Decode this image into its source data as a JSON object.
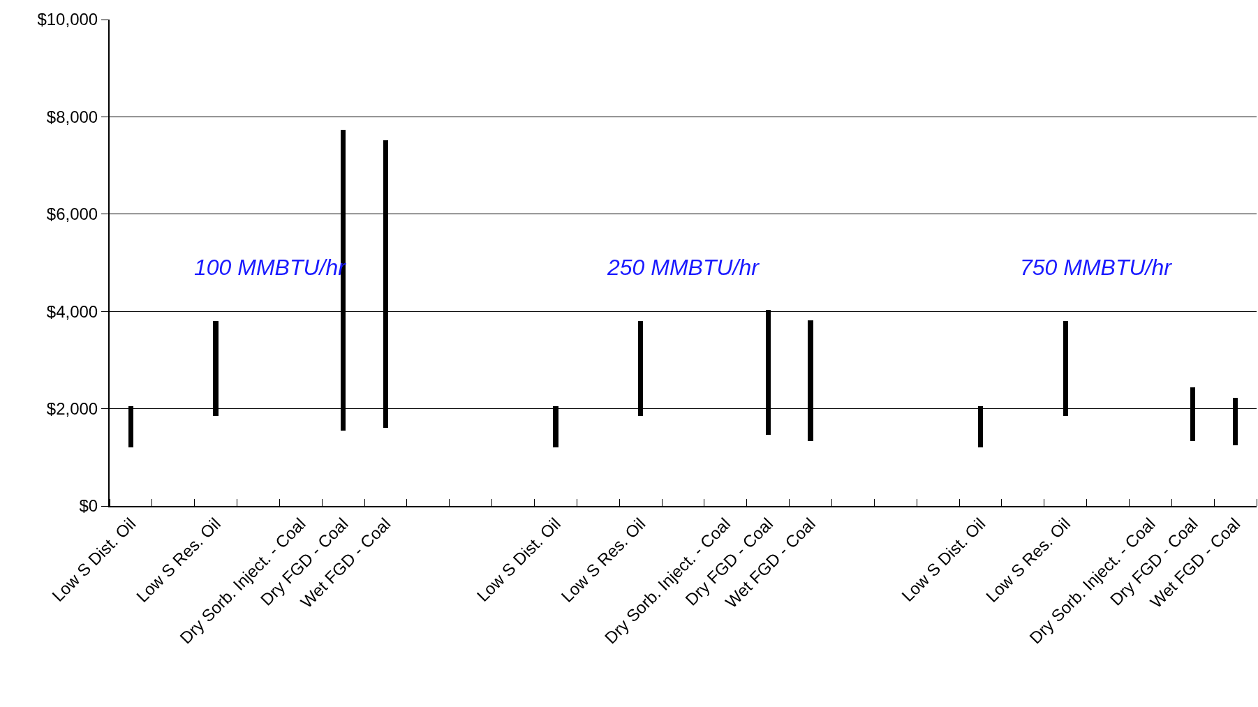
{
  "chart_data": {
    "type": "bar",
    "categories": [
      "Low S Dist. Oil",
      null,
      "Low S Res. Oil",
      null,
      "Dry Sorb. Inject. - Coal",
      "Dry FGD - Coal",
      "Wet FGD - Coal",
      null,
      null,
      null,
      "Low S Dist. Oil",
      null,
      "Low S Res. Oil",
      null,
      "Dry Sorb. Inject. - Coal",
      "Dry FGD - Coal",
      "Wet FGD - Coal",
      null,
      null,
      null,
      "Low S Dist. Oil",
      null,
      "Low S Res. Oil",
      null,
      "Dry Sorb. Inject. - Coal",
      "Dry FGD - Coal",
      "Wet FGD - Coal"
    ],
    "base": [
      1200,
      null,
      1850,
      null,
      null,
      1550,
      1600,
      null,
      null,
      null,
      1200,
      null,
      1850,
      null,
      null,
      1470,
      1340,
      null,
      null,
      null,
      1200,
      null,
      1850,
      null,
      null,
      1340,
      1250
    ],
    "values": [
      850,
      null,
      1950,
      null,
      null,
      6190,
      5920,
      null,
      null,
      null,
      850,
      null,
      1950,
      null,
      null,
      2560,
      2470,
      null,
      null,
      null,
      850,
      null,
      1950,
      null,
      null,
      1100,
      980
    ],
    "color": "#000000",
    "ylim": [
      0,
      10000
    ],
    "yticks": [
      {
        "value": 0,
        "label": "$0"
      },
      {
        "value": 2000,
        "label": "$2,000"
      },
      {
        "value": 4000,
        "label": "$4,000"
      },
      {
        "value": 6000,
        "label": "$6,000"
      },
      {
        "value": 8000,
        "label": "$8,000"
      },
      {
        "value": 10000,
        "label": "$10,000"
      }
    ],
    "grid": "y",
    "annotations": [
      "100 MMBTU/hr",
      "250 MMBTU/hr",
      "750 MMBTU/hr"
    ]
  }
}
